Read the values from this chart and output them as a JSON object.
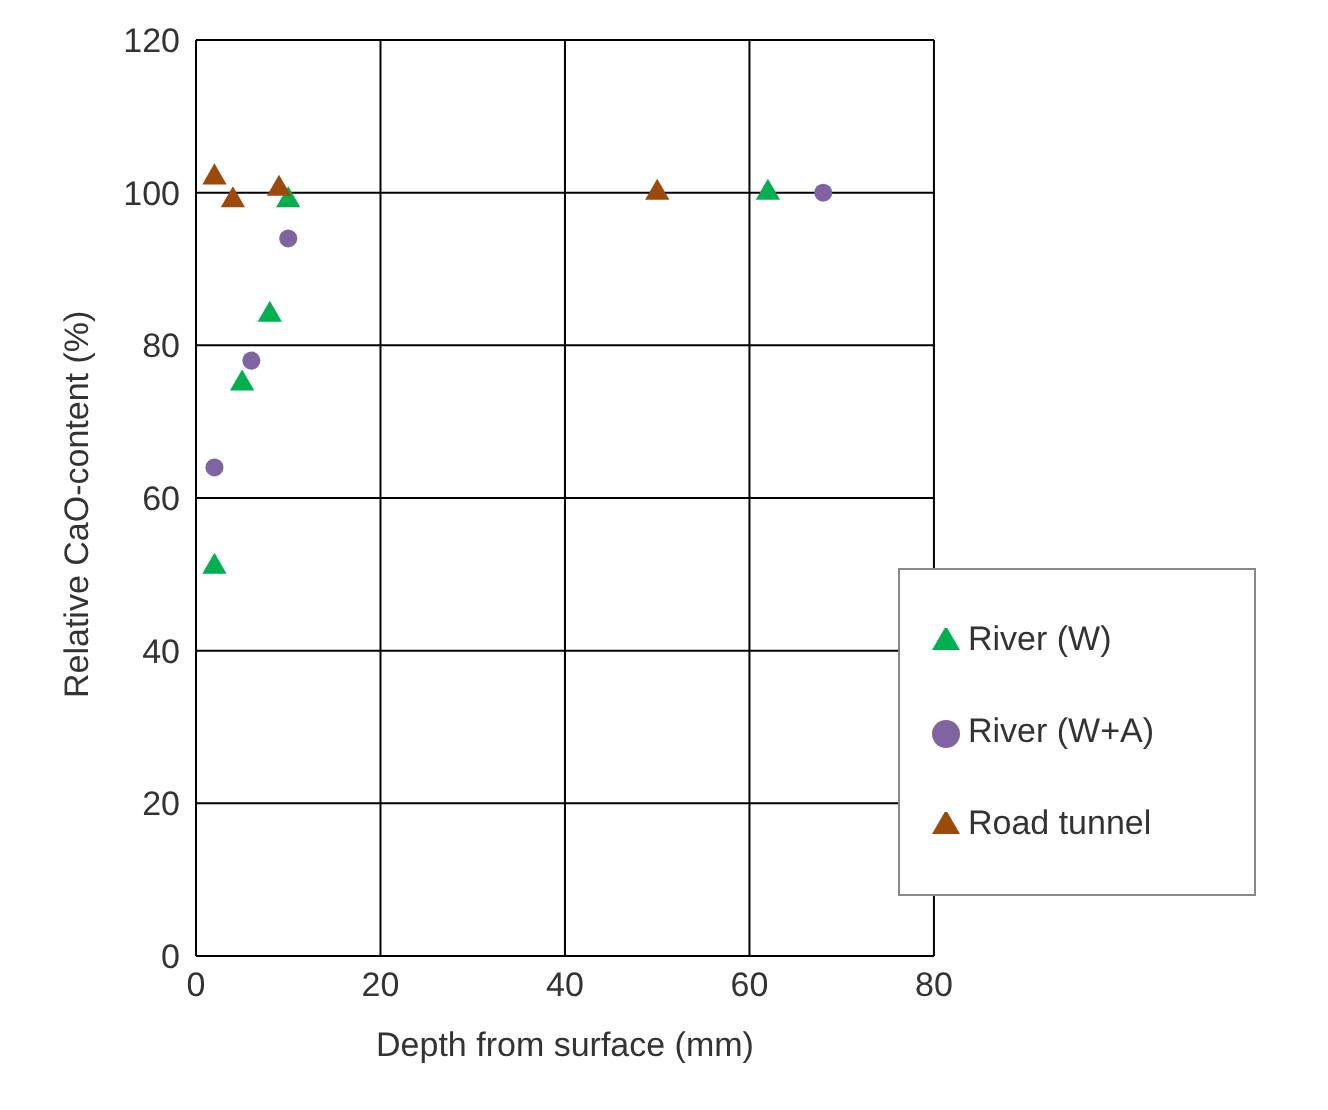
{
  "chart_data": {
    "type": "scatter",
    "xlabel": "Depth from surface (mm)",
    "ylabel": "Relative CaO-content (%)",
    "xlim": [
      0,
      80
    ],
    "xticks": [
      0,
      20,
      40,
      60,
      80
    ],
    "ylim": [
      0,
      120
    ],
    "yticks": [
      0,
      20,
      40,
      60,
      80,
      100,
      120
    ],
    "grid": true,
    "legend": "bottom right",
    "series": [
      {
        "name": "River (W+A)",
        "color": "#8064a2",
        "marker": "circle",
        "x": [
          2,
          6,
          10,
          68
        ],
        "values": [
          64,
          78,
          94,
          100
        ]
      },
      {
        "name": "River (W)",
        "color": "#00b050",
        "marker": "triangle",
        "x": [
          2,
          5,
          8,
          10,
          62
        ],
        "values": [
          51,
          75,
          84,
          99,
          100
        ]
      },
      {
        "name": "Road tunnel",
        "color": "#9c4a0c",
        "marker": "triangle",
        "x": [
          2,
          4,
          9,
          50
        ],
        "values": [
          102,
          99,
          100.5,
          100
        ]
      }
    ]
  }
}
